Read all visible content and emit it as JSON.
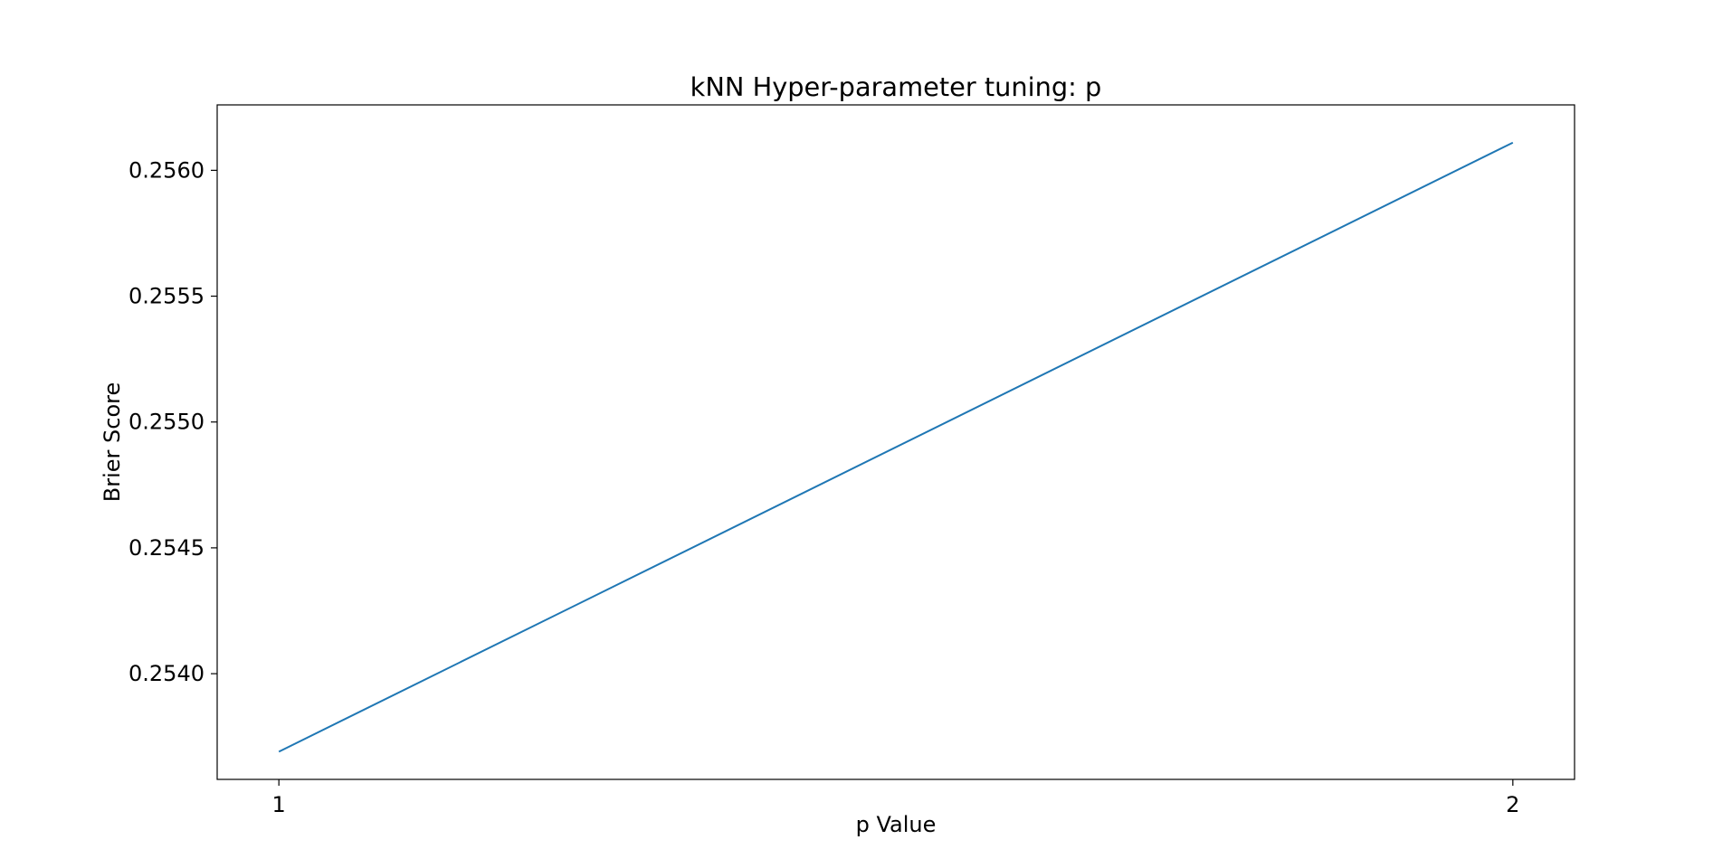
{
  "chart_data": {
    "type": "line",
    "title": "kNN Hyper-parameter tuning: p",
    "xlabel": "p Value",
    "ylabel": "Brier Score",
    "x": [
      1,
      2
    ],
    "x_ticks": [
      1,
      2
    ],
    "x_tick_labels": [
      "1",
      "2"
    ],
    "xlim": [
      0.95,
      2.05
    ],
    "y_ticks": [
      0.254,
      0.2545,
      0.255,
      0.2555,
      0.256
    ],
    "y_tick_labels": [
      "0.2540",
      "0.2545",
      "0.2550",
      "0.2555",
      "0.2560"
    ],
    "ylim": [
      0.25358,
      0.25626
    ],
    "series": [
      {
        "values": [
          0.25369,
          0.25611
        ],
        "color": "#1f77b4"
      }
    ],
    "grid": false,
    "legend": "none"
  }
}
